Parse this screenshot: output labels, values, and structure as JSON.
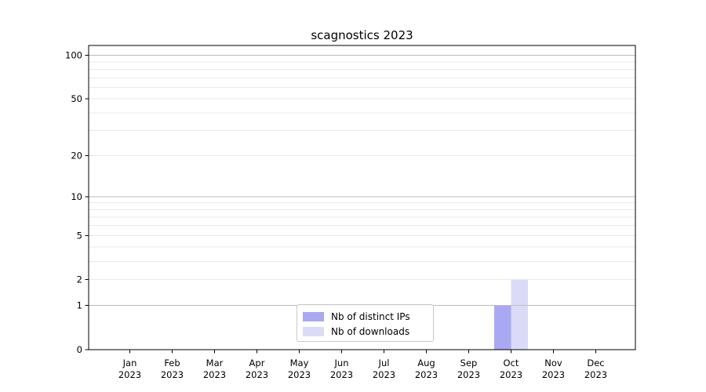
{
  "figure": {
    "title": "scagnostics 2023"
  },
  "chart_data": {
    "type": "bar",
    "title": "scagnostics 2023",
    "x": {
      "categories": [
        "Jan",
        "Feb",
        "Mar",
        "Apr",
        "May",
        "Jun",
        "Jul",
        "Aug",
        "Sep",
        "Oct",
        "Nov",
        "Dec"
      ],
      "year_suffix": "2023"
    },
    "series": [
      {
        "name": "Nb of distinct IPs",
        "color": "#a9a9f3",
        "values": [
          0,
          0,
          0,
          0,
          0,
          0,
          0,
          0,
          0,
          1,
          0,
          0
        ]
      },
      {
        "name": "Nb of downloads",
        "color": "#dbdbf8",
        "values": [
          0,
          0,
          0,
          0,
          0,
          0,
          0,
          0,
          0,
          2,
          0,
          0
        ]
      }
    ],
    "y_axis": {
      "scale": "log1p",
      "tick_values": [
        0,
        1,
        2,
        5,
        10,
        20,
        50,
        100
      ],
      "major_gridlines": [
        1,
        10,
        100
      ],
      "minor_gridlines": [
        2,
        3,
        4,
        5,
        6,
        7,
        8,
        9,
        20,
        30,
        40,
        50,
        60,
        70,
        80,
        90
      ],
      "range": [
        0,
        117
      ]
    },
    "legend": {
      "location": "lower center"
    },
    "colors": {
      "major_grid": "#bcbcbc",
      "minor_grid": "#e9e9e9",
      "axis": "#000000",
      "background": "#ffffff"
    }
  }
}
